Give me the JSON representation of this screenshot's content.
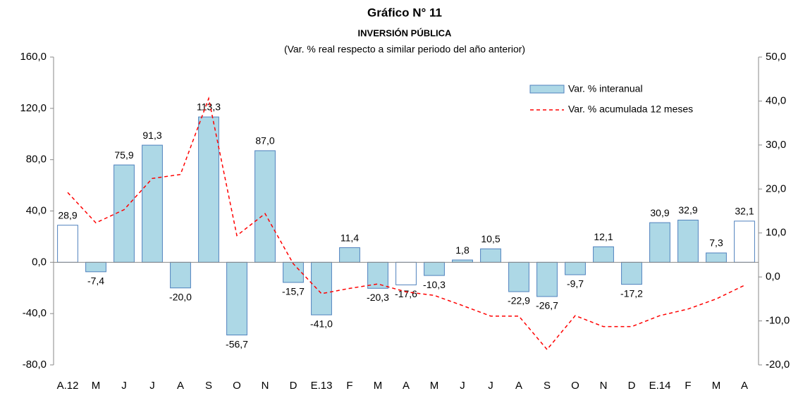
{
  "chart_data": {
    "type": "bar-line",
    "title": "Gráfico N° 11",
    "subtitle": "INVERSIÓN PÚBLICA",
    "note": "(Var. % real respecto a similar periodo del año anterior)",
    "categories": [
      "A.12",
      "M",
      "J",
      "J",
      "A",
      "S",
      "O",
      "N",
      "D",
      "E.13",
      "F",
      "M",
      "A",
      "M",
      "J",
      "J",
      "A",
      "S",
      "O",
      "N",
      "D",
      "E.14",
      "F",
      "M",
      "A"
    ],
    "series": [
      {
        "name": "Var. % interanual",
        "color": "#add8e6",
        "edge": "#4f81bd",
        "bar_colors": [
          "#ffffff",
          "#add8e6",
          "#add8e6",
          "#add8e6",
          "#add8e6",
          "#add8e6",
          "#add8e6",
          "#add8e6",
          "#add8e6",
          "#add8e6",
          "#add8e6",
          "#add8e6",
          "#ffffff",
          "#add8e6",
          "#add8e6",
          "#add8e6",
          "#add8e6",
          "#add8e6",
          "#add8e6",
          "#add8e6",
          "#add8e6",
          "#add8e6",
          "#add8e6",
          "#add8e6",
          "#ffffff"
        ],
        "values": [
          28.9,
          -7.4,
          75.9,
          91.3,
          -20.0,
          113.3,
          -56.7,
          87.0,
          -15.7,
          -41.0,
          11.4,
          -20.3,
          -17.6,
          -10.3,
          1.8,
          10.5,
          -22.9,
          -26.7,
          -9.7,
          12.1,
          -17.2,
          30.9,
          32.9,
          7.3,
          32.1
        ],
        "value_labels": [
          "28,9",
          "-7,4",
          "75,9",
          "91,3",
          "-20,0",
          "113,3",
          "-56,7",
          "87,0",
          "-15,7",
          "-41,0",
          "11,4",
          "-20,3",
          "-17,6",
          "-10,3",
          "1,8",
          "10,5",
          "-22,9",
          "-26,7",
          "-9,7",
          "12,1",
          "-17,2",
          "30,9",
          "32,9",
          "7,3",
          "32,1"
        ]
      },
      {
        "name": "Var. % acumulada 12 meses",
        "color": "#ff0000",
        "axis": "y2",
        "values": [
          19.2,
          12.3,
          15.3,
          22.4,
          23.3,
          40.6,
          9.4,
          14.4,
          3.0,
          -3.8,
          -2.6,
          -1.6,
          -3.4,
          -4.2,
          -6.5,
          -8.9,
          -8.9,
          -16.5,
          -8.8,
          -11.3,
          -11.3,
          -8.8,
          -7.3,
          -5.0,
          -1.9
        ]
      }
    ],
    "ylim": [
      -80,
      160
    ],
    "yticks": [
      {
        "value": -80,
        "label": "-80,0"
      },
      {
        "value": -40,
        "label": "-40,0"
      },
      {
        "value": 0,
        "label": "0,0"
      },
      {
        "value": 40,
        "label": "40,0"
      },
      {
        "value": 80,
        "label": "80,0"
      },
      {
        "value": 120,
        "label": "120,0"
      },
      {
        "value": 160,
        "label": "160,0"
      }
    ],
    "y2lim": [
      -20,
      50
    ],
    "y2ticks": [
      {
        "value": -20,
        "label": "-20,0"
      },
      {
        "value": -10,
        "label": "-10,0"
      },
      {
        "value": 0,
        "label": "0,0"
      },
      {
        "value": 10,
        "label": "10,0"
      },
      {
        "value": 20,
        "label": "20,0"
      },
      {
        "value": 30,
        "label": "30,0"
      },
      {
        "value": 40,
        "label": "40,0"
      },
      {
        "value": 50,
        "label": "50,0"
      }
    ],
    "grid": false
  }
}
